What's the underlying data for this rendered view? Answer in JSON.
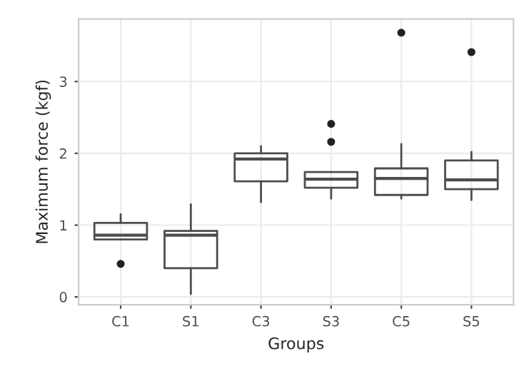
{
  "chart_data": {
    "type": "box",
    "xlabel": "Groups",
    "ylabel": "Maximum force (kgf)",
    "categories": [
      "C1",
      "S1",
      "C3",
      "S3",
      "C5",
      "S5"
    ],
    "boxes": [
      {
        "low": 0.8,
        "q1": 0.8,
        "median": 0.86,
        "q3": 1.03,
        "high": 1.15,
        "outliers": [
          0.46
        ]
      },
      {
        "low": 0.04,
        "q1": 0.4,
        "median": 0.86,
        "q3": 0.92,
        "high": 1.29
      },
      {
        "low": 1.32,
        "q1": 1.61,
        "median": 1.92,
        "q3": 2.0,
        "high": 2.1
      },
      {
        "low": 1.37,
        "q1": 1.52,
        "median": 1.64,
        "q3": 1.74,
        "high": 1.74,
        "outliers": [
          2.16,
          2.41
        ]
      },
      {
        "low": 1.37,
        "q1": 1.42,
        "median": 1.65,
        "q3": 1.79,
        "high": 2.13,
        "outliers": [
          3.68
        ]
      },
      {
        "low": 1.35,
        "q1": 1.5,
        "median": 1.63,
        "q3": 1.9,
        "high": 2.02,
        "outliers": [
          3.41
        ]
      }
    ],
    "ylim": [
      -0.11,
      3.87
    ],
    "yticks": [
      0,
      1,
      2,
      3
    ],
    "grid": true,
    "color": "#4d4d4d"
  }
}
